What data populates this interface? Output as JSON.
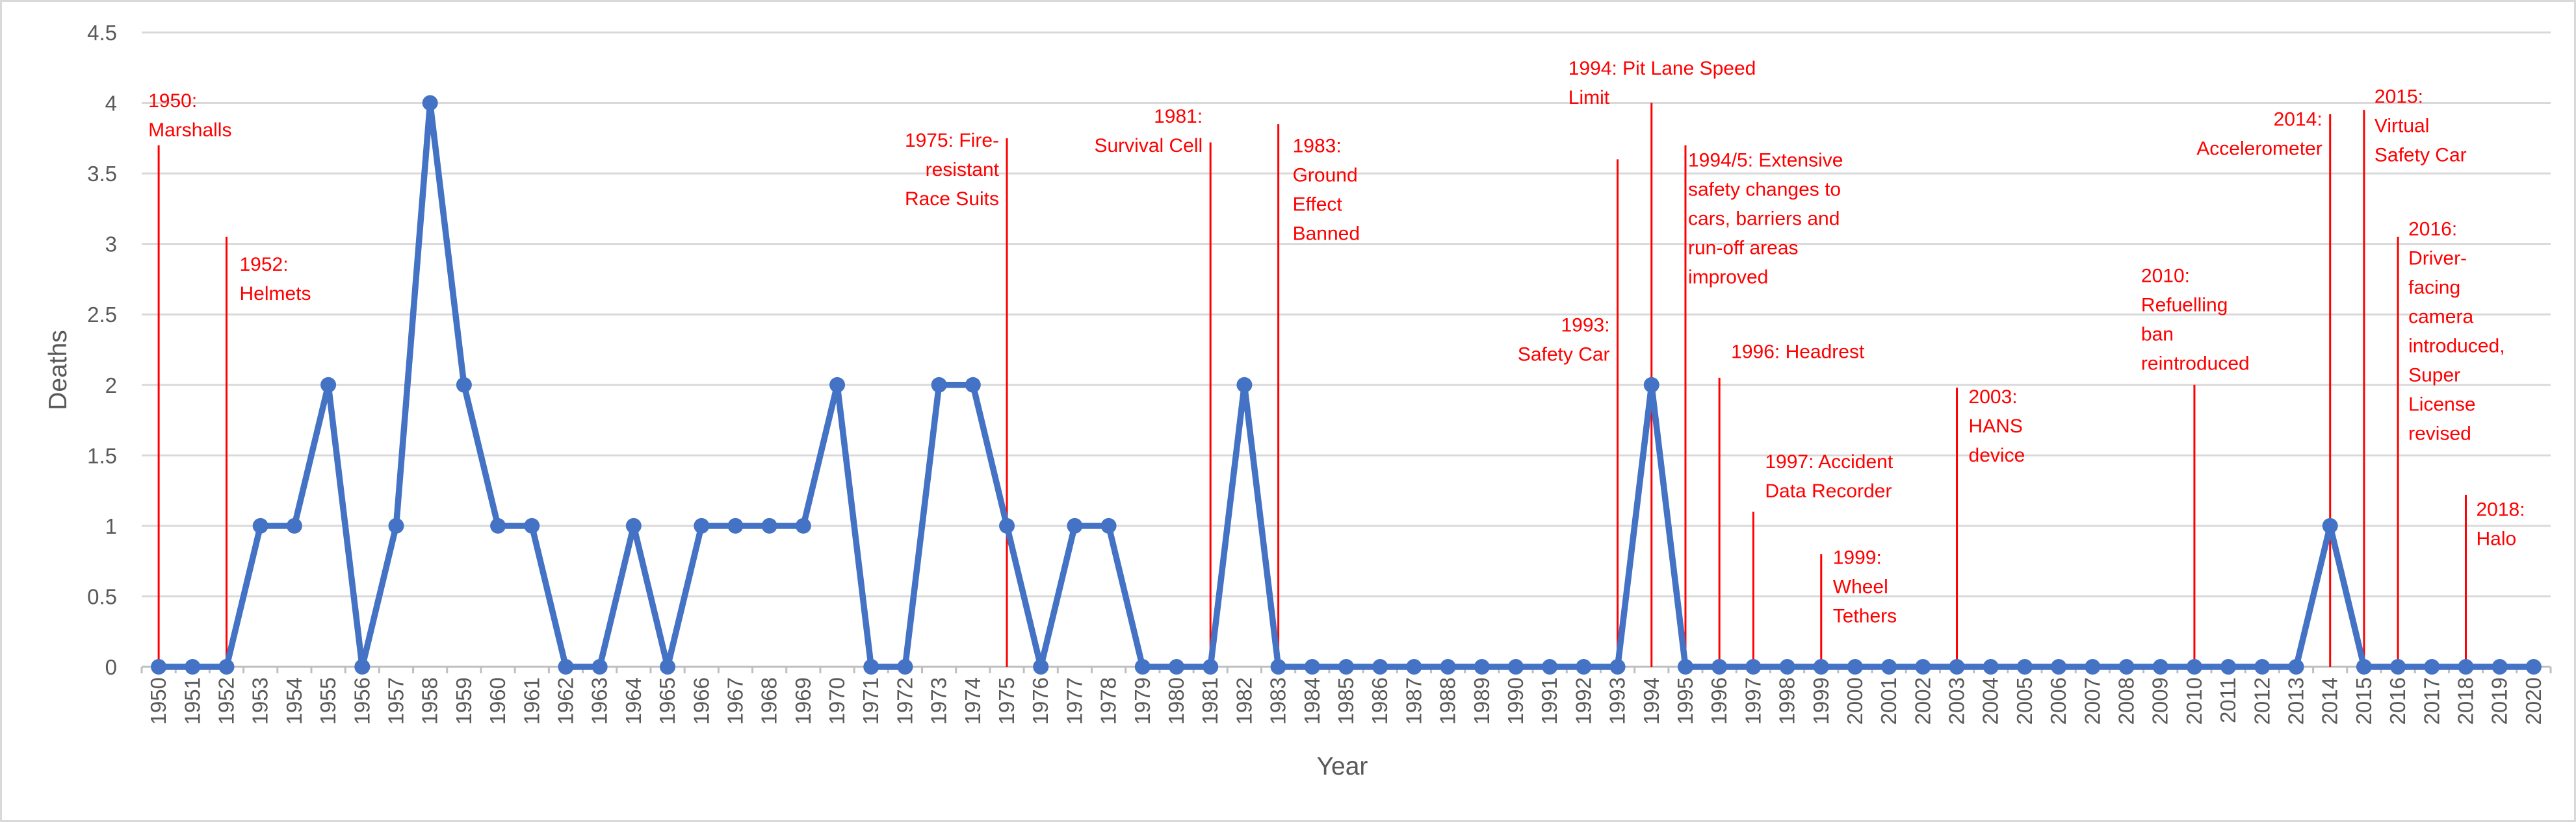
{
  "chart_data": {
    "type": "line",
    "title": "",
    "xlabel": "Year",
    "ylabel": "Deaths",
    "ylim": [
      0,
      4.5
    ],
    "yticks": [
      "0",
      "0.5",
      "1",
      "1.5",
      "2",
      "2.5",
      "3",
      "3.5",
      "4",
      "4.5"
    ],
    "grid": true,
    "legend": "none",
    "colors": {
      "series": "#4472c4",
      "annotations": "#ff0000"
    },
    "categories": [
      "1950",
      "1951",
      "1952",
      "1953",
      "1954",
      "1955",
      "1956",
      "1957",
      "1958",
      "1959",
      "1960",
      "1961",
      "1962",
      "1963",
      "1964",
      "1965",
      "1966",
      "1967",
      "1968",
      "1969",
      "1970",
      "1971",
      "1972",
      "1973",
      "1974",
      "1975",
      "1976",
      "1977",
      "1978",
      "1979",
      "1980",
      "1981",
      "1982",
      "1983",
      "1984",
      "1985",
      "1986",
      "1987",
      "1988",
      "1989",
      "1990",
      "1991",
      "1992",
      "1993",
      "1994",
      "1995",
      "1996",
      "1997",
      "1998",
      "1999",
      "2000",
      "2001",
      "2002",
      "2003",
      "2004",
      "2005",
      "2006",
      "2007",
      "2008",
      "2009",
      "2010",
      "2011",
      "2012",
      "2013",
      "2014",
      "2015",
      "2016",
      "2017",
      "2018",
      "2019",
      "2020"
    ],
    "series": [
      {
        "values": [
          0,
          0,
          0,
          1,
          1,
          2,
          0,
          1,
          4,
          2,
          1,
          1,
          0,
          0,
          1,
          0,
          1,
          1,
          1,
          1,
          2,
          0,
          0,
          2,
          2,
          1,
          0,
          1,
          1,
          0,
          0,
          0,
          2,
          0,
          0,
          0,
          0,
          0,
          0,
          0,
          0,
          0,
          0,
          0,
          2,
          0,
          0,
          0,
          0,
          0,
          0,
          0,
          0,
          0,
          0,
          0,
          0,
          0,
          0,
          0,
          0,
          0,
          0,
          0,
          1,
          0,
          0,
          0,
          0,
          0,
          0
        ]
      }
    ],
    "annotations": [
      {
        "year": "1950",
        "lines": [
          "1950:",
          "Marshalls"
        ],
        "top": 3.7
      },
      {
        "year": "1952",
        "lines": [
          "1952:",
          "Helmets"
        ],
        "top": 3.05
      },
      {
        "year": "1975",
        "lines": [
          "1975: Fire-",
          "resistant",
          "Race Suits"
        ],
        "top": 3.75
      },
      {
        "year": "1981",
        "lines": [
          "1981:",
          "Survival Cell"
        ],
        "top": 3.72
      },
      {
        "year": "1983",
        "lines": [
          "1983:",
          "Ground",
          "Effect",
          "Banned"
        ],
        "top": 3.85
      },
      {
        "year": "1993",
        "lines": [
          "1993:",
          "Safety Car"
        ],
        "top": 3.6
      },
      {
        "year": "1994",
        "lines": [
          "1994: Pit Lane Speed",
          "Limit"
        ],
        "top": 4.0
      },
      {
        "year": "1995",
        "lines": [
          "1994/5: Extensive",
          "safety changes to",
          "cars, barriers and",
          "run-off areas",
          "improved"
        ],
        "top": 3.7
      },
      {
        "year": "1996",
        "lines": [
          "1996: Headrest"
        ],
        "top": 2.05
      },
      {
        "year": "1997",
        "lines": [
          "1997: Accident",
          "Data Recorder"
        ],
        "top": 1.1
      },
      {
        "year": "1999",
        "lines": [
          "1999:",
          "Wheel",
          "Tethers"
        ],
        "top": 0.8
      },
      {
        "year": "2003",
        "lines": [
          "2003:",
          "HANS",
          "device"
        ],
        "top": 1.98
      },
      {
        "year": "2010",
        "lines": [
          "2010:",
          "Refuelling",
          "ban",
          "reintroduced"
        ],
        "top": 2.0
      },
      {
        "year": "2014",
        "lines": [
          "2014:",
          "Accelerometer"
        ],
        "top": 3.92
      },
      {
        "year": "2015",
        "lines": [
          "2015:",
          "Virtual",
          "Safety Car"
        ],
        "top": 3.95
      },
      {
        "year": "2016",
        "lines": [
          "2016:",
          "Driver-",
          "facing",
          "camera",
          "introduced,",
          "Super",
          "License",
          "revised"
        ],
        "top": 3.05
      },
      {
        "year": "2018",
        "lines": [
          "2018:",
          "Halo"
        ],
        "top": 1.22
      }
    ]
  }
}
